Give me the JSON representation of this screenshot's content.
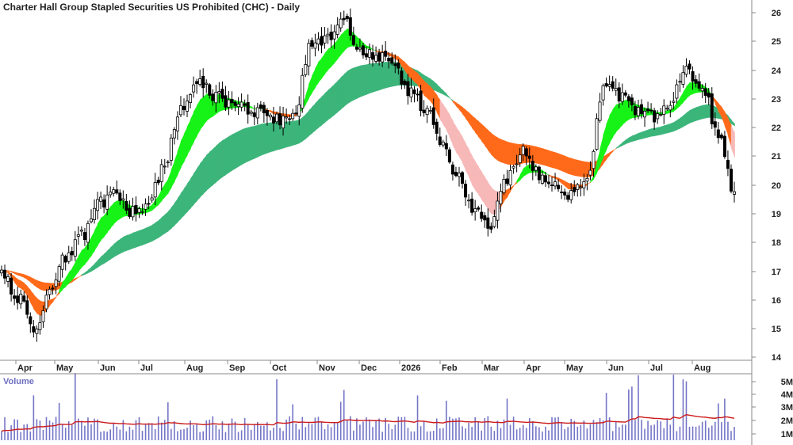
{
  "chart_data": [
    {
      "type": "candlestick",
      "title": "Charter Hall Group Stapled Securities US Prohibited (CHC) - Daily",
      "x_tick_labels": [
        "Apr",
        "May",
        "Jun",
        "Jul",
        "Aug",
        "Sep",
        "Oct",
        "Nov",
        "Dec",
        "2026",
        "Feb",
        "Mar",
        "Apr",
        "May",
        "Jun",
        "Jul",
        "Aug"
      ],
      "y_tick_labels": [
        "26",
        "25",
        "24",
        "23",
        "22",
        "21",
        "20",
        "19",
        "18",
        "17",
        "16",
        "15",
        "14"
      ],
      "ylim": [
        13.9,
        26.3
      ],
      "grid": false,
      "price_anchors": [
        [
          "Apr",
          16.9
        ],
        [
          "Apr",
          16.1
        ],
        [
          "Apr",
          15.0
        ],
        [
          "Apr",
          16.4
        ],
        [
          "May",
          17.5
        ],
        [
          "May",
          18.2
        ],
        [
          "Jun",
          19.3
        ],
        [
          "Jun",
          19.6
        ],
        [
          "Jul",
          19.0
        ],
        [
          "Jul",
          19.3
        ],
        [
          "Aug",
          20.6
        ],
        [
          "Aug",
          22.6
        ],
        [
          "Aug",
          23.6
        ],
        [
          "Sep",
          23.0
        ],
        [
          "Sep",
          22.8
        ],
        [
          "Oct",
          22.6
        ],
        [
          "Oct",
          22.4
        ],
        [
          "Nov",
          22.2
        ],
        [
          "Nov",
          22.4
        ],
        [
          "Nov",
          24.8
        ],
        [
          "Dec",
          25.0
        ],
        [
          "Dec",
          25.6
        ],
        [
          "Dec",
          24.6
        ],
        [
          "2026",
          24.4
        ],
        [
          "2026",
          24.0
        ],
        [
          "Feb",
          23.2
        ],
        [
          "Feb",
          22.6
        ],
        [
          "Feb",
          21.4
        ],
        [
          "Mar",
          20.2
        ],
        [
          "Mar",
          19.0
        ],
        [
          "Mar",
          18.5
        ],
        [
          "Apr",
          20.2
        ],
        [
          "Apr",
          21.1
        ],
        [
          "Apr",
          20.3
        ],
        [
          "May",
          20.0
        ],
        [
          "May",
          19.6
        ],
        [
          "May",
          20.3
        ],
        [
          "Jun",
          23.3
        ],
        [
          "Jun",
          23.0
        ],
        [
          "Jul",
          22.4
        ],
        [
          "Jul",
          22.3
        ],
        [
          "Jul",
          22.6
        ],
        [
          "Aug",
          23.9
        ],
        [
          "Aug",
          23.4
        ],
        [
          "Aug",
          21.7
        ],
        [
          "Aug",
          19.7
        ]
      ],
      "emas": {
        "short_band": {
          "up_color": "#17f317",
          "down_color": "#ff6a1a",
          "fade_color": "#f7b8b8"
        },
        "long_band": {
          "up_color": "#3cb57a",
          "down_color": "#ff6a1a"
        }
      },
      "last_close": 19.7
    },
    {
      "type": "bar",
      "title": "Volume",
      "y_tick_labels": [
        "5M",
        "4M",
        "3M",
        "2M",
        "1M"
      ],
      "ylim": [
        0,
        5200000
      ],
      "bar_color": "#7575c8",
      "moving_average_color": "#cc1a1a",
      "moving_average_value": 1400000
    }
  ]
}
